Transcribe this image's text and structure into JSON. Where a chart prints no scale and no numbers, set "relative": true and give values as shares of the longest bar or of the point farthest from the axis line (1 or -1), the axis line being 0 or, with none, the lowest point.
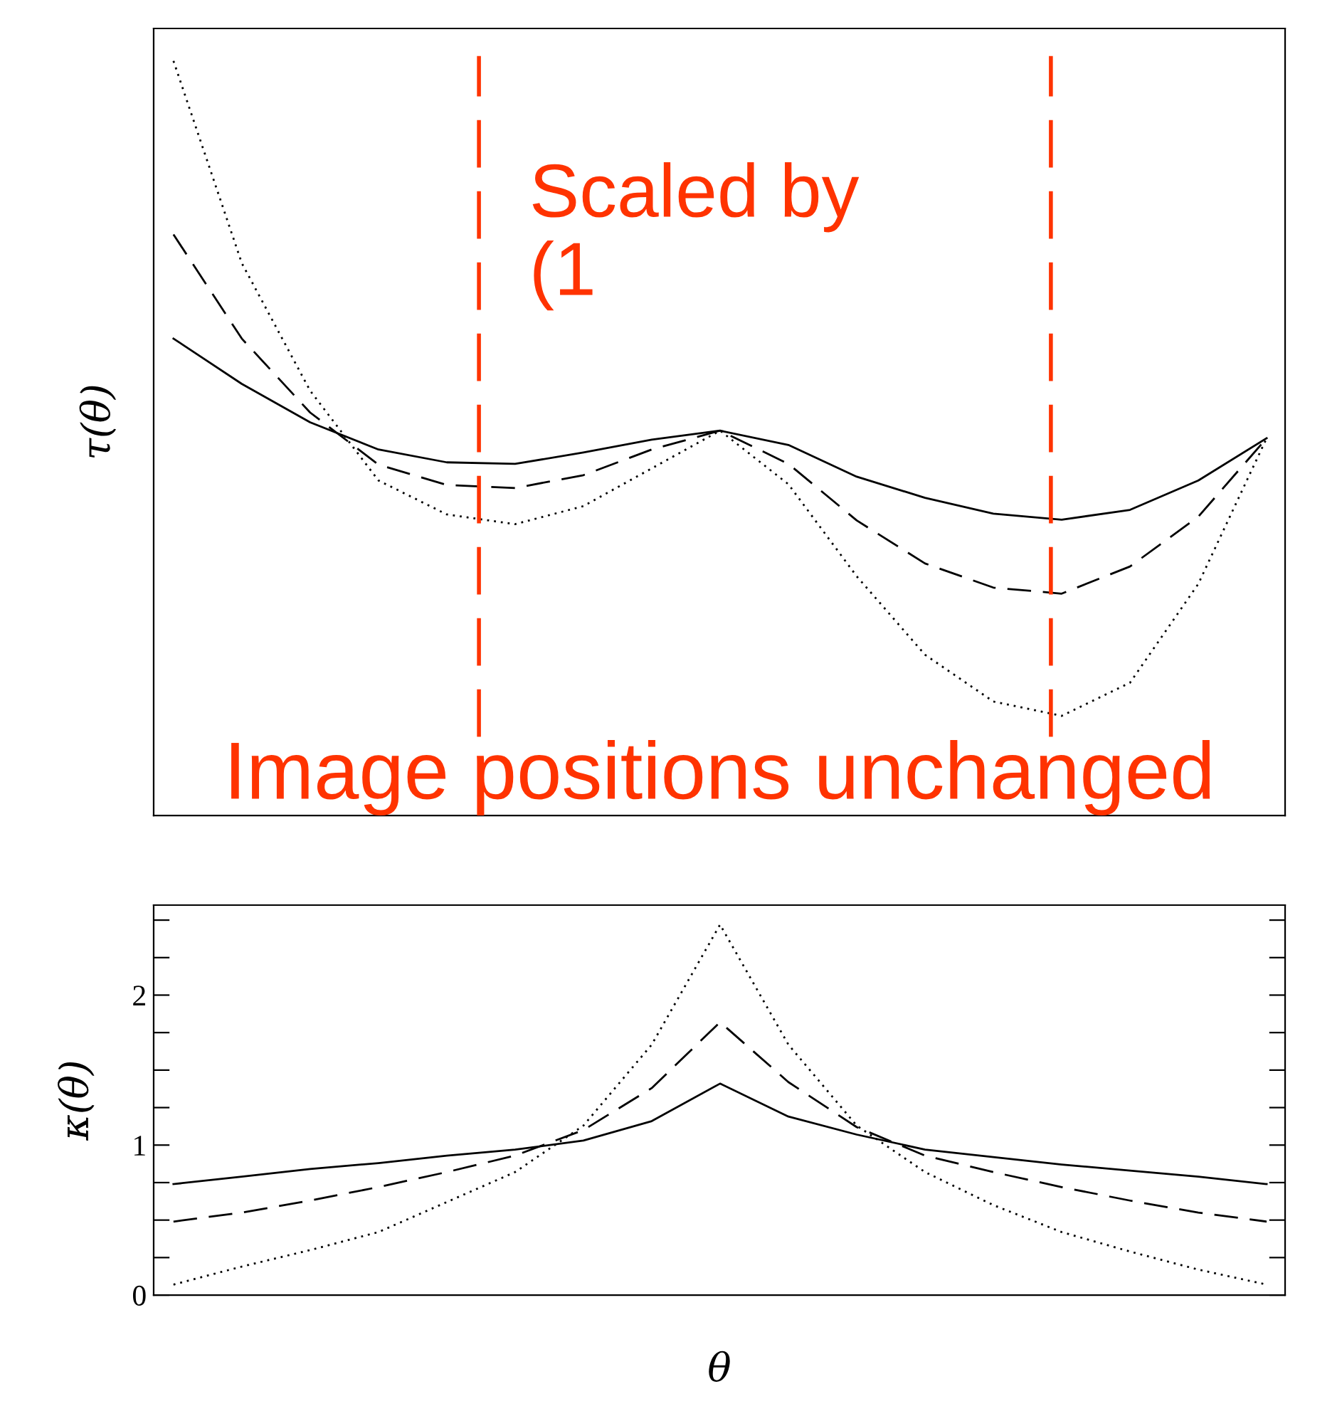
{
  "chart_data": [
    {
      "type": "line",
      "ylabel": "τ(θ)",
      "relative": true,
      "categories": [
        null,
        null,
        null,
        null,
        null,
        null,
        null,
        null,
        null,
        null,
        null,
        null,
        null,
        null,
        null,
        null,
        null
      ],
      "series": [
        {
          "color": "#000000",
          "line_style": "solid",
          "values": [
            0.632,
            0.572,
            0.521,
            0.485,
            0.468,
            0.466,
            0.481,
            0.498,
            0.51,
            0.491,
            0.449,
            0.421,
            0.4,
            0.392,
            0.405,
            0.444,
            0.5
          ]
        },
        {
          "color": "#000000",
          "line_style": "dashed",
          "values": [
            0.77,
            0.632,
            0.534,
            0.465,
            0.438,
            0.434,
            0.451,
            0.485,
            0.51,
            0.466,
            0.391,
            0.334,
            0.302,
            0.294,
            0.33,
            0.396,
            0.5
          ]
        },
        {
          "color": "#000000",
          "line_style": "dotted",
          "values": [
            1.0,
            0.732,
            0.563,
            0.444,
            0.399,
            0.386,
            0.41,
            0.46,
            0.51,
            0.439,
            0.317,
            0.213,
            0.151,
            0.132,
            0.176,
            0.307,
            0.5
          ]
        }
      ],
      "annotations": [
        "Scaled by\n(1",
        "Image positions unchanged"
      ]
    },
    {
      "type": "line",
      "ylabel": "κ(θ)",
      "xlabel": "θ",
      "categories": [
        null,
        null,
        null,
        null,
        null,
        null,
        null,
        null,
        null,
        null,
        null,
        null,
        null,
        null,
        null,
        null,
        null
      ],
      "ylim": [
        0,
        2.6
      ],
      "yticks": [
        0,
        {
          "value": 0.25,
          "label": null
        },
        {
          "value": 0.5,
          "label": null
        },
        {
          "value": 0.75,
          "label": null
        },
        1,
        {
          "value": 1.25,
          "label": null
        },
        {
          "value": 1.5,
          "label": null
        },
        {
          "value": 1.75,
          "label": null
        },
        2,
        {
          "value": 2.25,
          "label": null
        },
        {
          "value": 2.5,
          "label": null
        }
      ],
      "series": [
        {
          "color": "#000000",
          "line_style": "solid",
          "values": [
            0.74,
            0.79,
            0.84,
            0.88,
            0.93,
            0.97,
            1.03,
            1.16,
            1.41,
            1.19,
            1.07,
            0.97,
            0.92,
            0.87,
            0.83,
            0.79,
            0.74
          ]
        },
        {
          "color": "#000000",
          "line_style": "dashed",
          "values": [
            0.49,
            0.55,
            0.63,
            0.72,
            0.82,
            0.93,
            1.1,
            1.38,
            1.82,
            1.42,
            1.12,
            0.93,
            0.82,
            0.72,
            0.63,
            0.55,
            0.49
          ]
        },
        {
          "color": "#000000",
          "line_style": "dotted",
          "values": [
            0.07,
            0.19,
            0.3,
            0.42,
            0.62,
            0.82,
            1.13,
            1.67,
            2.47,
            1.67,
            1.13,
            0.82,
            0.6,
            0.42,
            0.29,
            0.17,
            0.07
          ]
        }
      ]
    }
  ]
}
